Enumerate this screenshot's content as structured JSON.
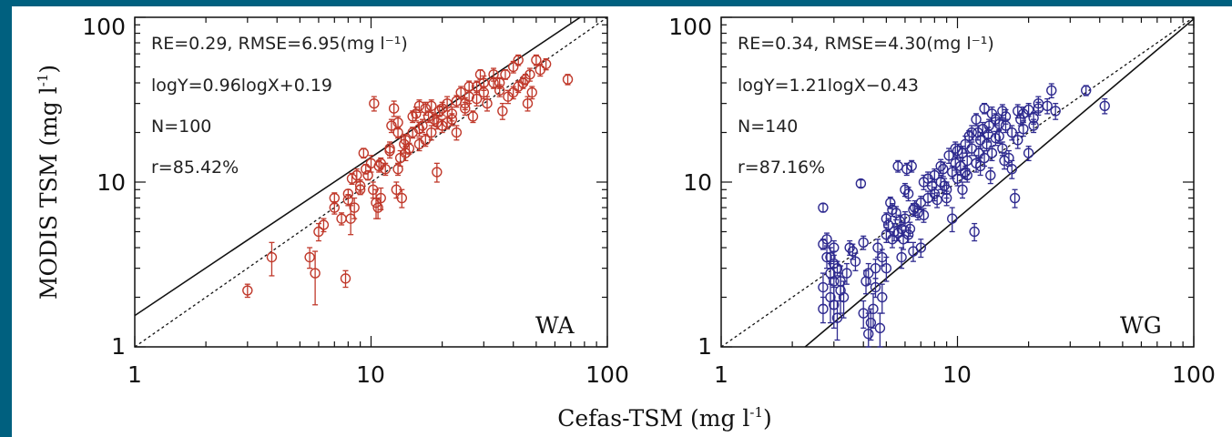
{
  "colors": {
    "frame": "#00607f",
    "panel_WA": "#c0392b",
    "panel_WG": "#2e2a8f"
  },
  "figure": {
    "ylabel": "MODIS TSM (mg l",
    "ylabel_sup": "-1",
    "ylabel_close": ")",
    "xlabel": "Cefas-TSM (mg l",
    "xlabel_sup": "-1",
    "xlabel_close": ")"
  },
  "chart_data": [
    {
      "type": "scatter",
      "panel_label": "WA",
      "xscale": "log",
      "yscale": "log",
      "xlim": [
        1,
        100
      ],
      "ylim": [
        1,
        100
      ],
      "x_ticks": [
        "1",
        "10",
        "100"
      ],
      "y_ticks": [
        "1",
        "10",
        "100"
      ],
      "annotations": [
        "RE=0.29, RMSE=6.95(mg l⁻¹)",
        "logY=0.96logX+0.19",
        "N=100",
        "r=85.42%"
      ],
      "fit_line": {
        "slope": 0.96,
        "intercept": 0.19,
        "style": "solid"
      },
      "one_to_one_line": {
        "style": "dotted"
      },
      "color": "#c0392b",
      "points": [
        [
          3.0,
          2.2,
          0.2
        ],
        [
          3.8,
          3.5,
          0.8
        ],
        [
          5.5,
          3.5,
          0.5
        ],
        [
          5.8,
          2.8,
          1.0
        ],
        [
          6.0,
          5.0,
          0.6
        ],
        [
          6.3,
          5.5,
          0.5
        ],
        [
          7.0,
          8.0,
          0.6
        ],
        [
          7.5,
          6.0,
          0.5
        ],
        [
          7.8,
          2.6,
          0.3
        ],
        [
          8.0,
          8.5,
          0.5
        ],
        [
          8.2,
          6.0,
          1.2
        ],
        [
          8.3,
          10.5,
          0.8
        ],
        [
          8.5,
          7.0,
          1.0
        ],
        [
          8.7,
          11.0,
          1.0
        ],
        [
          9.0,
          9.0,
          0.6
        ],
        [
          9.3,
          15.0,
          1.0
        ],
        [
          9.5,
          12.0,
          0.8
        ],
        [
          9.7,
          11.0,
          0.7
        ],
        [
          10.0,
          13.0,
          1.5
        ],
        [
          10.2,
          9.0,
          1.0
        ],
        [
          10.3,
          30.0,
          3.0
        ],
        [
          10.5,
          7.5,
          1.5
        ],
        [
          10.7,
          7.0,
          1.0
        ],
        [
          11.0,
          8.0,
          1.2
        ],
        [
          11.5,
          12.0,
          1.0
        ],
        [
          12.0,
          16.0,
          1.5
        ],
        [
          12.2,
          22.0,
          2.0
        ],
        [
          12.5,
          28.0,
          3.0
        ],
        [
          12.8,
          9.0,
          1.0
        ],
        [
          13.0,
          20.0,
          1.5
        ],
        [
          13.0,
          12.0,
          1.0
        ],
        [
          13.3,
          14.0,
          1.5
        ],
        [
          13.5,
          8.0,
          1.0
        ],
        [
          13.8,
          17.0,
          2.0
        ],
        [
          14.0,
          18.0,
          1.5
        ],
        [
          14.5,
          16.0,
          1.2
        ],
        [
          15.0,
          20.0,
          1.5
        ],
        [
          15.5,
          26.0,
          2.5
        ],
        [
          16.0,
          21.0,
          2.0
        ],
        [
          16.5,
          22.0,
          2.0
        ],
        [
          17.0,
          28.0,
          2.5
        ],
        [
          17.5,
          25.0,
          2.0
        ],
        [
          18.0,
          20.0,
          2.0
        ],
        [
          18.5,
          24.0,
          2.0
        ],
        [
          19.0,
          11.5,
          1.5
        ],
        [
          19.5,
          27.0,
          2.0
        ],
        [
          20.0,
          22.0,
          2.0
        ],
        [
          21.0,
          30.0,
          3.0
        ],
        [
          22.0,
          26.0,
          2.5
        ],
        [
          23.0,
          20.0,
          2.0
        ],
        [
          24.0,
          35.0,
          3.0
        ],
        [
          25.0,
          28.0,
          2.5
        ],
        [
          26.0,
          33.0,
          3.0
        ],
        [
          27.0,
          25.0,
          2.0
        ],
        [
          28.0,
          38.0,
          3.0
        ],
        [
          29.0,
          45.0,
          3.0
        ],
        [
          30.0,
          40.0,
          4.0
        ],
        [
          31.0,
          30.0,
          3.0
        ],
        [
          33.0,
          45.0,
          4.0
        ],
        [
          35.0,
          36.0,
          3.0
        ],
        [
          37.0,
          45.0,
          3.0
        ],
        [
          40.0,
          50.0,
          4.0
        ],
        [
          42.0,
          55.0,
          4.0
        ],
        [
          44.0,
          40.0,
          3.0
        ],
        [
          46.0,
          30.0,
          3.0
        ],
        [
          48.0,
          35.0,
          3.0
        ],
        [
          50.0,
          55.0,
          4.0
        ],
        [
          55.0,
          52.0,
          4.0
        ],
        [
          68.0,
          42.0,
          3.0
        ],
        [
          16.0,
          17.0,
          1.5
        ],
        [
          17.0,
          18.0,
          1.5
        ],
        [
          19.0,
          23.0,
          2.0
        ],
        [
          21.0,
          23.0,
          2.0
        ],
        [
          23.0,
          31.0,
          2.5
        ],
        [
          26.0,
          38.0,
          3.0
        ],
        [
          35.0,
          40.0,
          3.0
        ],
        [
          38.0,
          33.0,
          3.0
        ],
        [
          42.0,
          38.0,
          3.0
        ],
        [
          45.0,
          42.0,
          3.0
        ],
        [
          14.0,
          15.0,
          1.5
        ],
        [
          11.0,
          13.0,
          1.0
        ],
        [
          9.0,
          9.5,
          0.8
        ],
        [
          8.0,
          7.8,
          0.6
        ],
        [
          7.0,
          7.0,
          0.6
        ],
        [
          10.8,
          12.5,
          1.0
        ],
        [
          12.0,
          15.5,
          1.5
        ],
        [
          15.0,
          25.0,
          2.0
        ],
        [
          20.0,
          28.0,
          2.5
        ],
        [
          25.0,
          30.0,
          2.5
        ],
        [
          30.0,
          35.0,
          3.0
        ],
        [
          36.0,
          27.0,
          3.0
        ],
        [
          40.0,
          35.0,
          3.0
        ],
        [
          47.0,
          45.0,
          4.0
        ],
        [
          52.0,
          48.0,
          4.0
        ],
        [
          13.0,
          23.0,
          2.0
        ],
        [
          16.0,
          29.0,
          2.5
        ],
        [
          18.0,
          29.0,
          2.5
        ],
        [
          22.0,
          24.0,
          2.0
        ],
        [
          28.0,
          32.0,
          3.0
        ],
        [
          33.0,
          40.0,
          3.0
        ]
      ]
    },
    {
      "type": "scatter",
      "panel_label": "WG",
      "xscale": "log",
      "yscale": "log",
      "xlim": [
        1,
        100
      ],
      "ylim": [
        1,
        100
      ],
      "x_ticks": [
        "1",
        "10",
        "100"
      ],
      "y_ticks": [
        "1",
        "10",
        "100"
      ],
      "annotations": [
        "RE=0.34, RMSE=4.30(mg l⁻¹)",
        "logY=1.21logX−0.43",
        "N=140",
        "r=87.16%"
      ],
      "fit_line": {
        "slope": 1.21,
        "intercept": -0.43,
        "style": "solid"
      },
      "one_to_one_line": {
        "style": "dotted"
      },
      "color": "#2e2a8f",
      "points": [
        [
          2.7,
          7.0,
          0.4
        ],
        [
          2.7,
          4.2,
          0.3
        ],
        [
          2.7,
          2.3,
          0.5
        ],
        [
          2.7,
          1.7,
          0.3
        ],
        [
          2.8,
          4.5,
          0.4
        ],
        [
          2.8,
          3.5,
          0.5
        ],
        [
          2.9,
          2.8,
          0.4
        ],
        [
          2.9,
          2.0,
          0.6
        ],
        [
          3.0,
          3.2,
          0.6
        ],
        [
          3.0,
          2.5,
          0.8
        ],
        [
          3.0,
          1.8,
          0.5
        ],
        [
          3.1,
          1.5,
          0.4
        ],
        [
          3.1,
          3.0,
          0.3
        ],
        [
          3.2,
          2.2,
          0.6
        ],
        [
          3.5,
          4.0,
          0.4
        ],
        [
          3.7,
          3.3,
          0.4
        ],
        [
          3.9,
          9.8,
          0.5
        ],
        [
          4.0,
          4.3,
          0.4
        ],
        [
          4.0,
          1.6,
          0.3
        ],
        [
          4.2,
          1.2,
          0.4
        ],
        [
          4.3,
          1.4,
          0.3
        ],
        [
          4.4,
          1.7,
          0.4
        ],
        [
          4.5,
          2.3,
          0.3
        ],
        [
          4.6,
          4.0,
          0.5
        ],
        [
          4.7,
          1.3,
          0.3
        ],
        [
          4.8,
          3.5,
          0.4
        ],
        [
          5.0,
          6.0,
          0.5
        ],
        [
          5.0,
          3.0,
          0.5
        ],
        [
          5.1,
          5.5,
          0.5
        ],
        [
          5.2,
          7.5,
          0.6
        ],
        [
          5.3,
          4.5,
          0.5
        ],
        [
          5.4,
          5.0,
          0.6
        ],
        [
          5.5,
          6.5,
          0.6
        ],
        [
          5.6,
          12.5,
          1.0
        ],
        [
          5.7,
          5.8,
          0.5
        ],
        [
          5.8,
          3.5,
          0.5
        ],
        [
          5.9,
          4.5,
          0.6
        ],
        [
          6.0,
          6.0,
          0.6
        ],
        [
          6.1,
          12.0,
          1.0
        ],
        [
          6.2,
          8.5,
          0.8
        ],
        [
          6.3,
          5.2,
          0.5
        ],
        [
          6.4,
          12.5,
          1.0
        ],
        [
          6.5,
          3.8,
          0.5
        ],
        [
          6.6,
          7.0,
          0.7
        ],
        [
          6.8,
          6.5,
          0.6
        ],
        [
          7.0,
          4.0,
          0.5
        ],
        [
          7.2,
          10.0,
          1.0
        ],
        [
          7.5,
          8.0,
          0.8
        ],
        [
          7.8,
          9.5,
          1.0
        ],
        [
          8.0,
          8.5,
          0.8
        ],
        [
          8.2,
          7.8,
          0.8
        ],
        [
          8.5,
          10.0,
          1.0
        ],
        [
          8.7,
          12.0,
          1.2
        ],
        [
          9.0,
          9.0,
          1.0
        ],
        [
          9.2,
          14.5,
          1.5
        ],
        [
          9.5,
          6.0,
          1.0
        ],
        [
          9.8,
          16.0,
          1.5
        ],
        [
          10.0,
          10.5,
          1.0
        ],
        [
          10.3,
          12.5,
          1.5
        ],
        [
          10.5,
          15.0,
          1.5
        ],
        [
          10.8,
          17.0,
          2.0
        ],
        [
          11.0,
          11.0,
          1.0
        ],
        [
          11.2,
          19.0,
          1.5
        ],
        [
          11.5,
          16.0,
          1.5
        ],
        [
          11.8,
          5.0,
          0.6
        ],
        [
          12.0,
          13.0,
          1.5
        ],
        [
          12.2,
          20.0,
          2.0
        ],
        [
          12.5,
          12.5,
          1.5
        ],
        [
          12.8,
          21.0,
          2.0
        ],
        [
          13.0,
          28.0,
          2.0
        ],
        [
          13.3,
          17.0,
          1.5
        ],
        [
          13.6,
          22.0,
          2.0
        ],
        [
          14.0,
          15.0,
          1.5
        ],
        [
          14.5,
          24.0,
          2.0
        ],
        [
          15.0,
          19.0,
          1.8
        ],
        [
          15.5,
          27.0,
          2.5
        ],
        [
          16.0,
          22.0,
          2.0
        ],
        [
          16.5,
          14.0,
          1.5
        ],
        [
          17.0,
          12.0,
          1.5
        ],
        [
          17.5,
          8.0,
          1.0
        ],
        [
          18.0,
          18.0,
          2.0
        ],
        [
          18.5,
          24.0,
          2.0
        ],
        [
          19.0,
          26.0,
          2.5
        ],
        [
          20.0,
          15.0,
          1.5
        ],
        [
          21.0,
          22.0,
          2.0
        ],
        [
          22.0,
          28.0,
          2.5
        ],
        [
          24.0,
          29.0,
          3.0
        ],
        [
          25.0,
          36.0,
          3.5
        ],
        [
          26.0,
          27.0,
          3.0
        ],
        [
          35.0,
          36.0,
          2.5
        ],
        [
          42.0,
          29.0,
          3.0
        ],
        [
          3.2,
          2.5,
          0.6
        ],
        [
          3.4,
          2.8,
          0.4
        ],
        [
          3.6,
          3.8,
          0.4
        ],
        [
          4.1,
          2.5,
          0.4
        ],
        [
          4.5,
          3.0,
          0.4
        ],
        [
          5.0,
          4.8,
          0.5
        ],
        [
          5.3,
          6.8,
          0.6
        ],
        [
          5.6,
          4.9,
          0.5
        ],
        [
          6.0,
          9.0,
          0.8
        ],
        [
          6.5,
          6.8,
          0.6
        ],
        [
          7.0,
          7.5,
          0.7
        ],
        [
          7.5,
          10.5,
          1.0
        ],
        [
          8.0,
          11.0,
          1.0
        ],
        [
          8.5,
          12.5,
          1.2
        ],
        [
          9.0,
          8.0,
          0.8
        ],
        [
          9.5,
          11.5,
          1.0
        ],
        [
          10.0,
          15.5,
          1.5
        ],
        [
          10.5,
          9.0,
          1.0
        ],
        [
          11.0,
          13.5,
          1.5
        ],
        [
          11.5,
          20.0,
          2.0
        ],
        [
          12.0,
          24.0,
          2.0
        ],
        [
          12.5,
          18.0,
          2.0
        ],
        [
          13.0,
          14.0,
          1.5
        ],
        [
          13.5,
          19.5,
          2.0
        ],
        [
          14.0,
          26.0,
          2.5
        ],
        [
          14.5,
          18.5,
          1.8
        ],
        [
          15.0,
          22.5,
          2.0
        ],
        [
          15.5,
          16.0,
          1.5
        ],
        [
          16.0,
          25.0,
          2.5
        ],
        [
          17.0,
          20.0,
          2.0
        ],
        [
          18.0,
          27.0,
          2.5
        ],
        [
          19.0,
          21.0,
          2.0
        ],
        [
          20.0,
          27.5,
          2.5
        ],
        [
          21.0,
          24.5,
          2.0
        ],
        [
          22.0,
          30.0,
          3.0
        ],
        [
          4.8,
          2.0,
          0.4
        ],
        [
          3.0,
          4.0,
          0.4
        ],
        [
          2.9,
          3.5,
          0.5
        ],
        [
          3.3,
          2.0,
          0.5
        ],
        [
          4.2,
          2.8,
          0.4
        ],
        [
          5.8,
          5.2,
          0.5
        ],
        [
          6.2,
          4.8,
          0.5
        ],
        [
          7.2,
          6.3,
          0.6
        ],
        [
          8.8,
          9.5,
          1.0
        ],
        [
          9.8,
          13.0,
          1.2
        ],
        [
          10.8,
          11.5,
          1.0
        ],
        [
          12.3,
          15.0,
          1.5
        ],
        [
          13.8,
          11.0,
          1.2
        ],
        [
          15.8,
          13.5,
          1.5
        ]
      ]
    }
  ]
}
